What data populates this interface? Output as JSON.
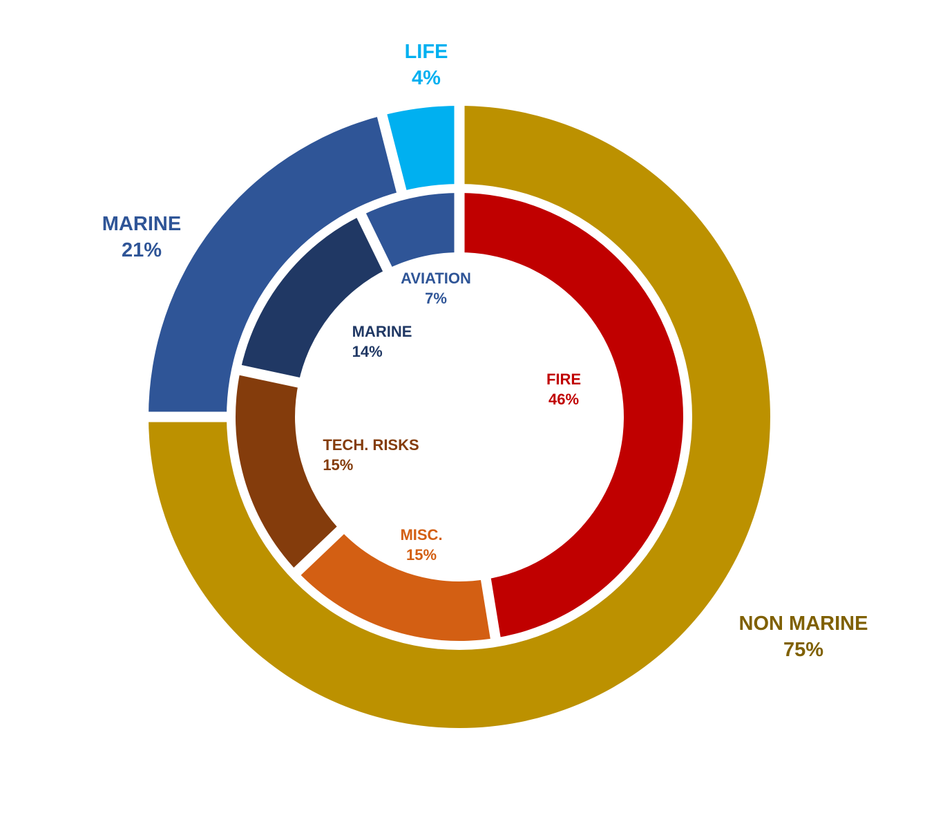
{
  "chart_data": {
    "type": "pie",
    "variant": "nested-donut",
    "title": "",
    "outer_ring": [
      {
        "name": "NON MARINE",
        "percent_label": "75%",
        "value": 75,
        "color": "#BC9100"
      },
      {
        "name": "MARINE",
        "percent_label": "21%",
        "value": 21,
        "color": "#2F5597"
      },
      {
        "name": "LIFE",
        "percent_label": "4%",
        "value": 4,
        "color": "#00B0F0"
      }
    ],
    "inner_ring": [
      {
        "name": "FIRE",
        "percent_label": "46%",
        "value": 46,
        "color": "#C00000"
      },
      {
        "name": "MISC.",
        "percent_label": "15%",
        "value": 15,
        "color": "#D35F13"
      },
      {
        "name": "TECH. RISKS",
        "percent_label": "15%",
        "value": 15,
        "color": "#843C0C"
      },
      {
        "name": "MARINE",
        "percent_label": "14%",
        "value": 14,
        "color": "#203864"
      },
      {
        "name": "AVIATION",
        "percent_label": "7%",
        "value": 7,
        "color": "#2F5597"
      }
    ],
    "label_colors": {
      "NON MARINE": "#7F6000",
      "MARINE_outer": "#2F5597",
      "LIFE": "#00B0F0",
      "FIRE": "#C00000",
      "MISC.": "#D35F13",
      "TECH. RISKS": "#843C0C",
      "MARINE_inner": "#203864",
      "AVIATION": "#2F5597"
    },
    "legend": "none"
  }
}
